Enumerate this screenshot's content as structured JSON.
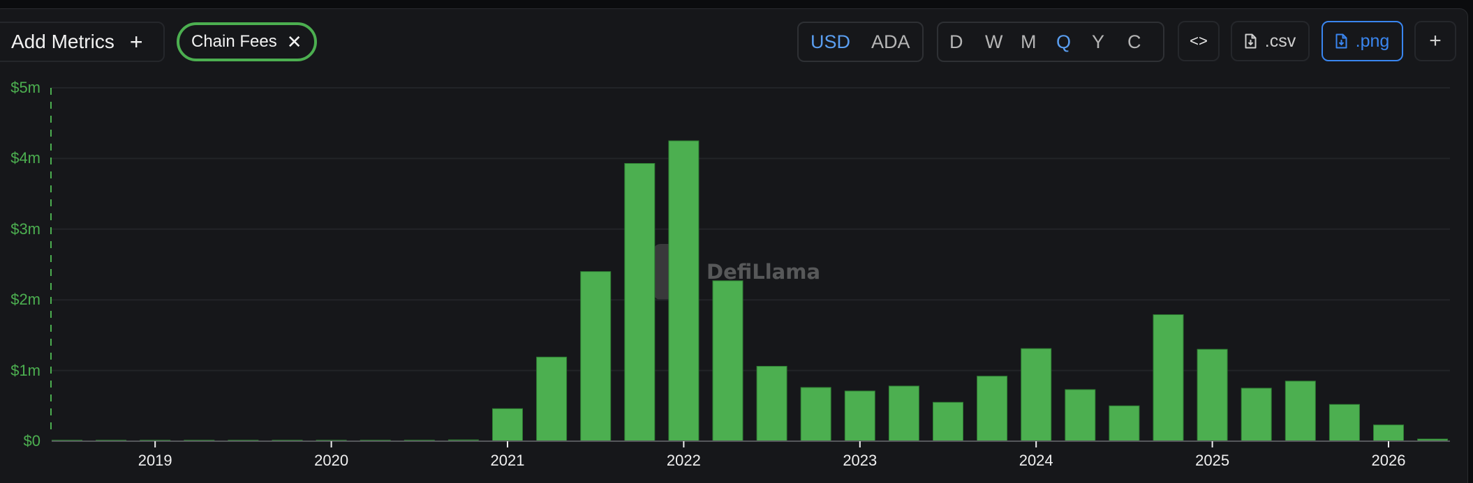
{
  "toolbar": {
    "add_metrics_label": "Add Metrics",
    "add_metrics_icon": "+",
    "active_metric_chip": "Chain Fees",
    "chip_close_icon": "✕",
    "currency_options": [
      {
        "label": "USD",
        "active": true
      },
      {
        "label": "ADA",
        "active": false
      }
    ],
    "period_options": [
      {
        "label": "D",
        "active": false
      },
      {
        "label": "W",
        "active": false
      },
      {
        "label": "M",
        "active": false
      },
      {
        "label": "Q",
        "active": true
      },
      {
        "label": "Y",
        "active": false
      },
      {
        "label": "C",
        "active": false
      }
    ],
    "embed_icon": "<>",
    "csv_label": ".csv",
    "png_label": ".png",
    "add_chart_icon": "+"
  },
  "colors": {
    "bar": "#4caf50",
    "axis_label": "#4caf50",
    "active_toggle": "#5a9ef0",
    "png_button": "#3a86f0",
    "background": "#16171a"
  },
  "watermark": "DefiLlama",
  "chart_data": {
    "type": "bar",
    "title": "",
    "series_name": "Chain Fees",
    "xlabel": "",
    "ylabel": "",
    "granularity": "quarterly",
    "currency": "USD",
    "ylim": [
      0,
      5000000
    ],
    "y_ticks": [
      "$0",
      "$1m",
      "$2m",
      "$3m",
      "$4m",
      "$5m"
    ],
    "x_ticks": [
      "2019",
      "2020",
      "2021",
      "2022",
      "2023",
      "2024",
      "2025",
      "2026"
    ],
    "grid": true,
    "legend": "none",
    "categories": [
      "2018-Q3",
      "2018-Q4",
      "2019-Q1",
      "2019-Q2",
      "2019-Q3",
      "2019-Q4",
      "2020-Q1",
      "2020-Q2",
      "2020-Q3",
      "2020-Q4",
      "2021-Q1",
      "2021-Q2",
      "2021-Q3",
      "2021-Q4",
      "2022-Q1",
      "2022-Q2",
      "2022-Q3",
      "2022-Q4",
      "2023-Q1",
      "2023-Q2",
      "2023-Q3",
      "2023-Q4",
      "2024-Q1",
      "2024-Q2",
      "2024-Q3",
      "2024-Q4",
      "2025-Q1",
      "2025-Q2",
      "2025-Q3",
      "2025-Q4",
      "2026-Q1",
      "2026-Q2"
    ],
    "values": [
      2000,
      3000,
      2000,
      5000,
      4000,
      3000,
      5000,
      6000,
      15000,
      18000,
      460000,
      1190000,
      2400000,
      3930000,
      4250000,
      2270000,
      1060000,
      760000,
      710000,
      780000,
      550000,
      920000,
      1310000,
      730000,
      500000,
      1790000,
      1300000,
      750000,
      850000,
      520000,
      230000,
      30000
    ]
  }
}
